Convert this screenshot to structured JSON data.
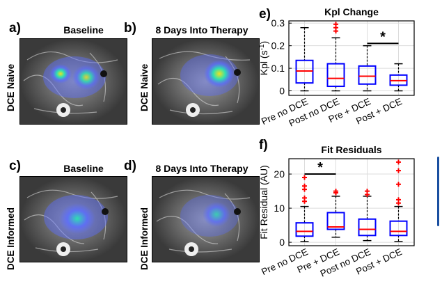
{
  "colors": {
    "box": "#0000ff",
    "median": "#ff0000",
    "outlier": "#ff0000",
    "whisker": "#000000",
    "grid": "#dcdcdc",
    "overlay_blue": "#5a6cff",
    "overlay_green": "#2ee0b0",
    "overlay_yellow": "#f0e020",
    "edge_panel": "#1a4fa0"
  },
  "panels": {
    "a": {
      "letter": "a)",
      "title": "Baseline"
    },
    "b": {
      "letter": "b)",
      "title": "8 Days Into Therapy"
    },
    "c": {
      "letter": "c)",
      "title": "Baseline"
    },
    "d": {
      "letter": "d)",
      "title": "8 Days Into Therapy"
    },
    "e": {
      "letter": "e)"
    },
    "f": {
      "letter": "f)"
    }
  },
  "row_labels": {
    "top": "DCE Naive",
    "bottom": "DCE Informed"
  },
  "chart_data": [
    {
      "type": "box",
      "title": "Kpl Change",
      "ylabel": "Kpl (s",
      "ylabel_sup": "-1",
      "ylabel_end": ")",
      "ylim": [
        -0.02,
        0.31
      ],
      "yticks": [
        0,
        0.1,
        0.2,
        0.3
      ],
      "ytick_labels": [
        "0",
        "0.1",
        "0.2",
        "0.3"
      ],
      "grid": true,
      "categories": [
        "Pre no DCE",
        "Post no DCE",
        "Pre + DCE",
        "Post + DCE"
      ],
      "boxes": [
        {
          "whislo": 0.0,
          "q1": 0.035,
          "med": 0.088,
          "q3": 0.135,
          "whishi": 0.28,
          "fliers": []
        },
        {
          "whislo": 0.0,
          "q1": 0.02,
          "med": 0.055,
          "q3": 0.12,
          "whishi": 0.235,
          "fliers": [
            0.265,
            0.28,
            0.295
          ]
        },
        {
          "whislo": 0.0,
          "q1": 0.03,
          "med": 0.065,
          "q3": 0.11,
          "whishi": 0.2,
          "fliers": []
        },
        {
          "whislo": 0.0,
          "q1": 0.025,
          "med": 0.045,
          "q3": 0.07,
          "whishi": 0.12,
          "fliers": []
        }
      ],
      "significance": {
        "from": 2,
        "to": 3,
        "y": 0.21,
        "label": "*"
      }
    },
    {
      "type": "box",
      "title": "Fit Residuals",
      "ylabel": "Fit Residual (AU)",
      "ylim": [
        -1,
        24.5
      ],
      "yticks": [
        0,
        10,
        20
      ],
      "ytick_labels": [
        "0",
        "10",
        "20"
      ],
      "grid": true,
      "categories": [
        "Pre no DCE",
        "Pre + DCE",
        "Post no DCE",
        "Post + DCE"
      ],
      "boxes": [
        {
          "whislo": 0.2,
          "q1": 1.8,
          "med": 3.2,
          "q3": 5.7,
          "whishi": 10.5,
          "fliers": [
            12.0,
            13.0,
            15.5,
            16.5,
            19.0
          ]
        },
        {
          "whislo": 1.5,
          "q1": 3.8,
          "med": 4.5,
          "q3": 8.7,
          "whishi": 13.5,
          "fliers": [
            14.5,
            15.0
          ]
        },
        {
          "whislo": 0.5,
          "q1": 2.0,
          "med": 3.8,
          "q3": 6.8,
          "whishi": 13.5,
          "fliers": [
            14.0,
            15.0
          ]
        },
        {
          "whislo": 0.2,
          "q1": 2.0,
          "med": 3.2,
          "q3": 6.2,
          "whishi": 10.5,
          "fliers": [
            11.5,
            12.5,
            17.0,
            21.0,
            23.5
          ]
        }
      ],
      "significance": {
        "from": 0,
        "to": 1,
        "y": 20.0,
        "label": "*"
      }
    }
  ]
}
